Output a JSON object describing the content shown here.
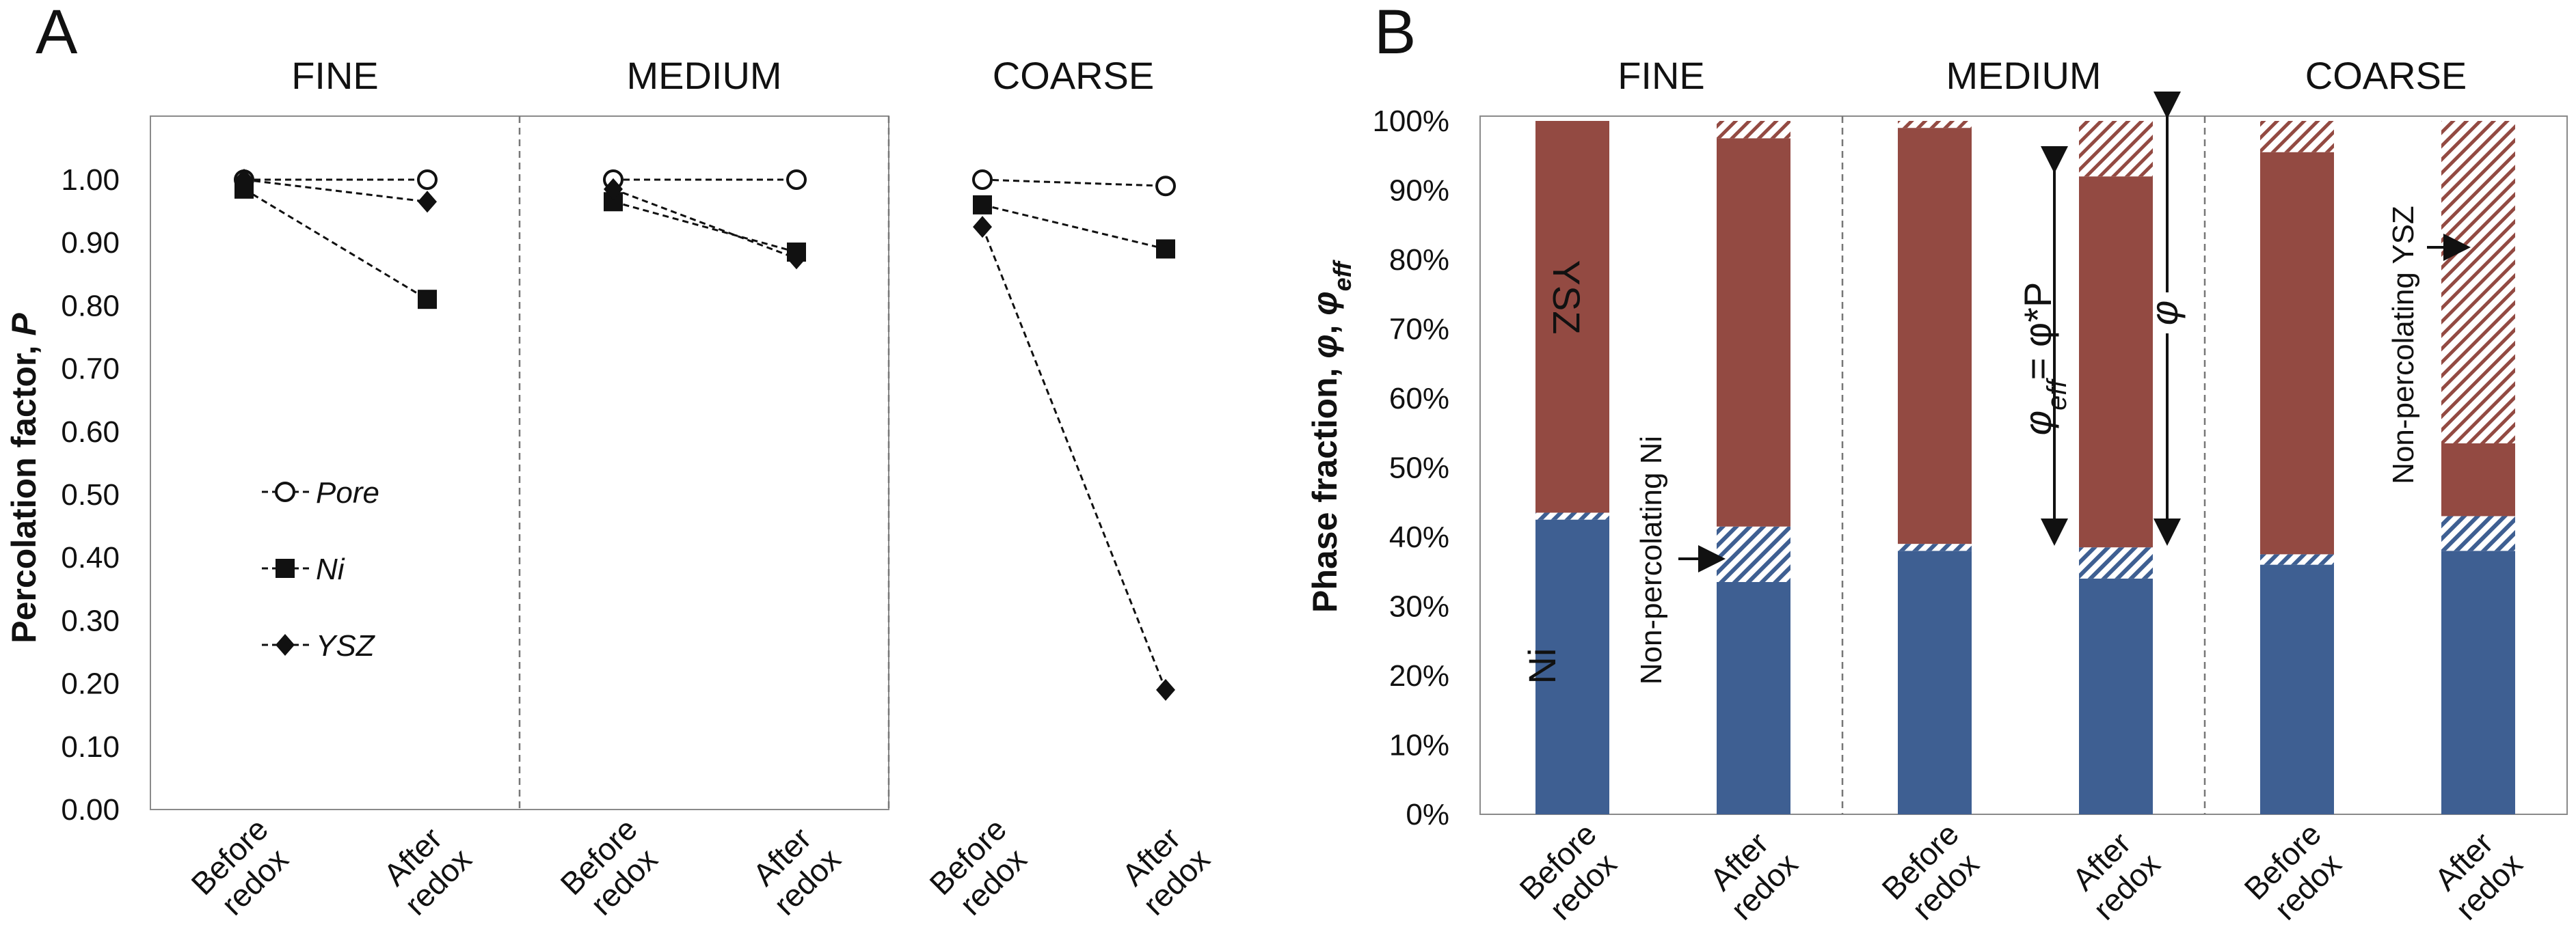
{
  "chart_data": [
    {
      "panel": "A",
      "type": "line",
      "ylabel_main": "Percolation factor, ",
      "ylabel_var": "P",
      "ylim": [
        0,
        1.1
      ],
      "yticks": [
        "0.00",
        "0.10",
        "0.20",
        "0.30",
        "0.40",
        "0.50",
        "0.60",
        "0.70",
        "0.80",
        "0.90",
        "1.00"
      ],
      "groups": [
        "FINE",
        "MEDIUM",
        "COARSE"
      ],
      "categories": [
        [
          "Before",
          "redox"
        ],
        [
          "After",
          "redox"
        ]
      ],
      "series": [
        {
          "name": "Pore",
          "marker": "open-circle",
          "values": [
            [
              1.0,
              1.0
            ],
            [
              1.0,
              1.0
            ],
            [
              1.0,
              0.99
            ]
          ]
        },
        {
          "name": "Ni",
          "marker": "filled-square",
          "values": [
            [
              0.985,
              0.81
            ],
            [
              0.965,
              0.885
            ],
            [
              0.96,
              0.89
            ]
          ]
        },
        {
          "name": "YSZ",
          "marker": "filled-diamond",
          "values": [
            [
              1.0,
              0.965
            ],
            [
              0.985,
              0.875
            ],
            [
              0.925,
              0.19
            ]
          ]
        }
      ]
    },
    {
      "panel": "B",
      "type": "bar",
      "stacked": true,
      "ylabel_main": "Phase fraction, ",
      "ylim": [
        0,
        100
      ],
      "yticks": [
        "0%",
        "10%",
        "20%",
        "30%",
        "40%",
        "50%",
        "60%",
        "70%",
        "80%",
        "90%",
        "100%"
      ],
      "groups": [
        "FINE",
        "MEDIUM",
        "COARSE"
      ],
      "categories": [
        [
          "Before",
          "redox"
        ],
        [
          "After",
          "redox"
        ]
      ],
      "segments": [
        "Ni",
        "Non-percolating Ni",
        "YSZ",
        "Non-percolating YSZ"
      ],
      "colors": {
        "Ni": "#3e5f92",
        "YSZ": "#934a42",
        "hatch_ni": "#3e5f92",
        "hatch_ysz": "#934a42"
      },
      "bars": [
        {
          "group": "FINE",
          "category": "Before redox",
          "ni": 42.5,
          "ni_nonperc": 1.0,
          "ysz": 56.5,
          "ysz_nonperc": 0.0
        },
        {
          "group": "FINE",
          "category": "After redox",
          "ni": 33.5,
          "ni_nonperc": 8.0,
          "ysz": 56.0,
          "ysz_nonperc": 2.5
        },
        {
          "group": "MEDIUM",
          "category": "Before redox",
          "ni": 38.0,
          "ni_nonperc": 1.0,
          "ysz": 60.0,
          "ysz_nonperc": 1.0
        },
        {
          "group": "MEDIUM",
          "category": "After redox",
          "ni": 34.0,
          "ni_nonperc": 4.5,
          "ysz": 53.5,
          "ysz_nonperc": 8.0
        },
        {
          "group": "COARSE",
          "category": "Before redox",
          "ni": 36.0,
          "ni_nonperc": 1.5,
          "ysz": 58.0,
          "ysz_nonperc": 4.5
        },
        {
          "group": "COARSE",
          "category": "After redox",
          "ni": 38.0,
          "ni_nonperc": 5.0,
          "ysz": 10.5,
          "ysz_nonperc": 46.5
        }
      ],
      "annotations": {
        "ysz_label": "YSZ",
        "ni_label": "Ni",
        "nonperc_ni": "Non-percolating Ni",
        "nonperc_ysz": "Non-percolating YSZ",
        "phi_eff_eq": "= φ*P",
        "phi": "φ"
      }
    }
  ]
}
